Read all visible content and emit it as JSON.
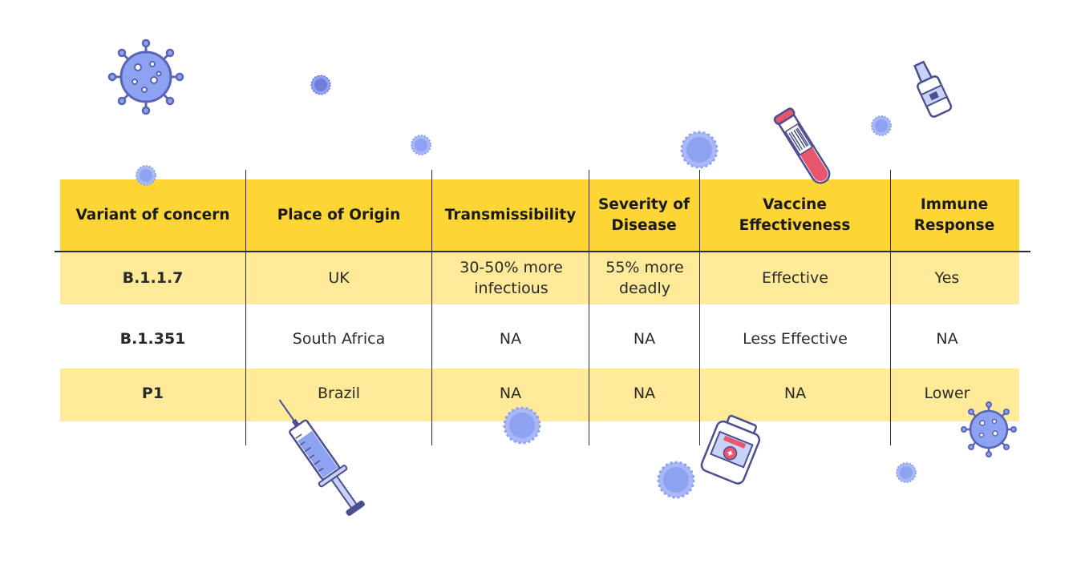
{
  "table": {
    "headers": [
      "Variant of concern",
      "Place of Origin",
      "Transmissibility",
      "Severity of Disease",
      "Vaccine Effectiveness",
      "Immune Response"
    ],
    "rows": [
      [
        "B.1.1.7",
        "UK",
        "30-50% more infectious",
        "55% more deadly",
        "Effective",
        "Yes"
      ],
      [
        "B.1.351",
        "South Africa",
        "NA",
        "NA",
        "Less Effective",
        "NA"
      ],
      [
        "P1",
        "Brazil",
        "NA",
        "NA",
        "NA",
        "Lower"
      ]
    ]
  },
  "colors": {
    "header_band": "#FDD534",
    "row_band": "#FEEA98",
    "virus": "#8EA2F2",
    "virus_dark": "#5A64B5",
    "tube_liquid": "#E8566E"
  },
  "icons": [
    "virus-icon",
    "syringe-icon",
    "test-tube-icon",
    "vaccine-vial-icon",
    "medicine-bottle-icon"
  ]
}
